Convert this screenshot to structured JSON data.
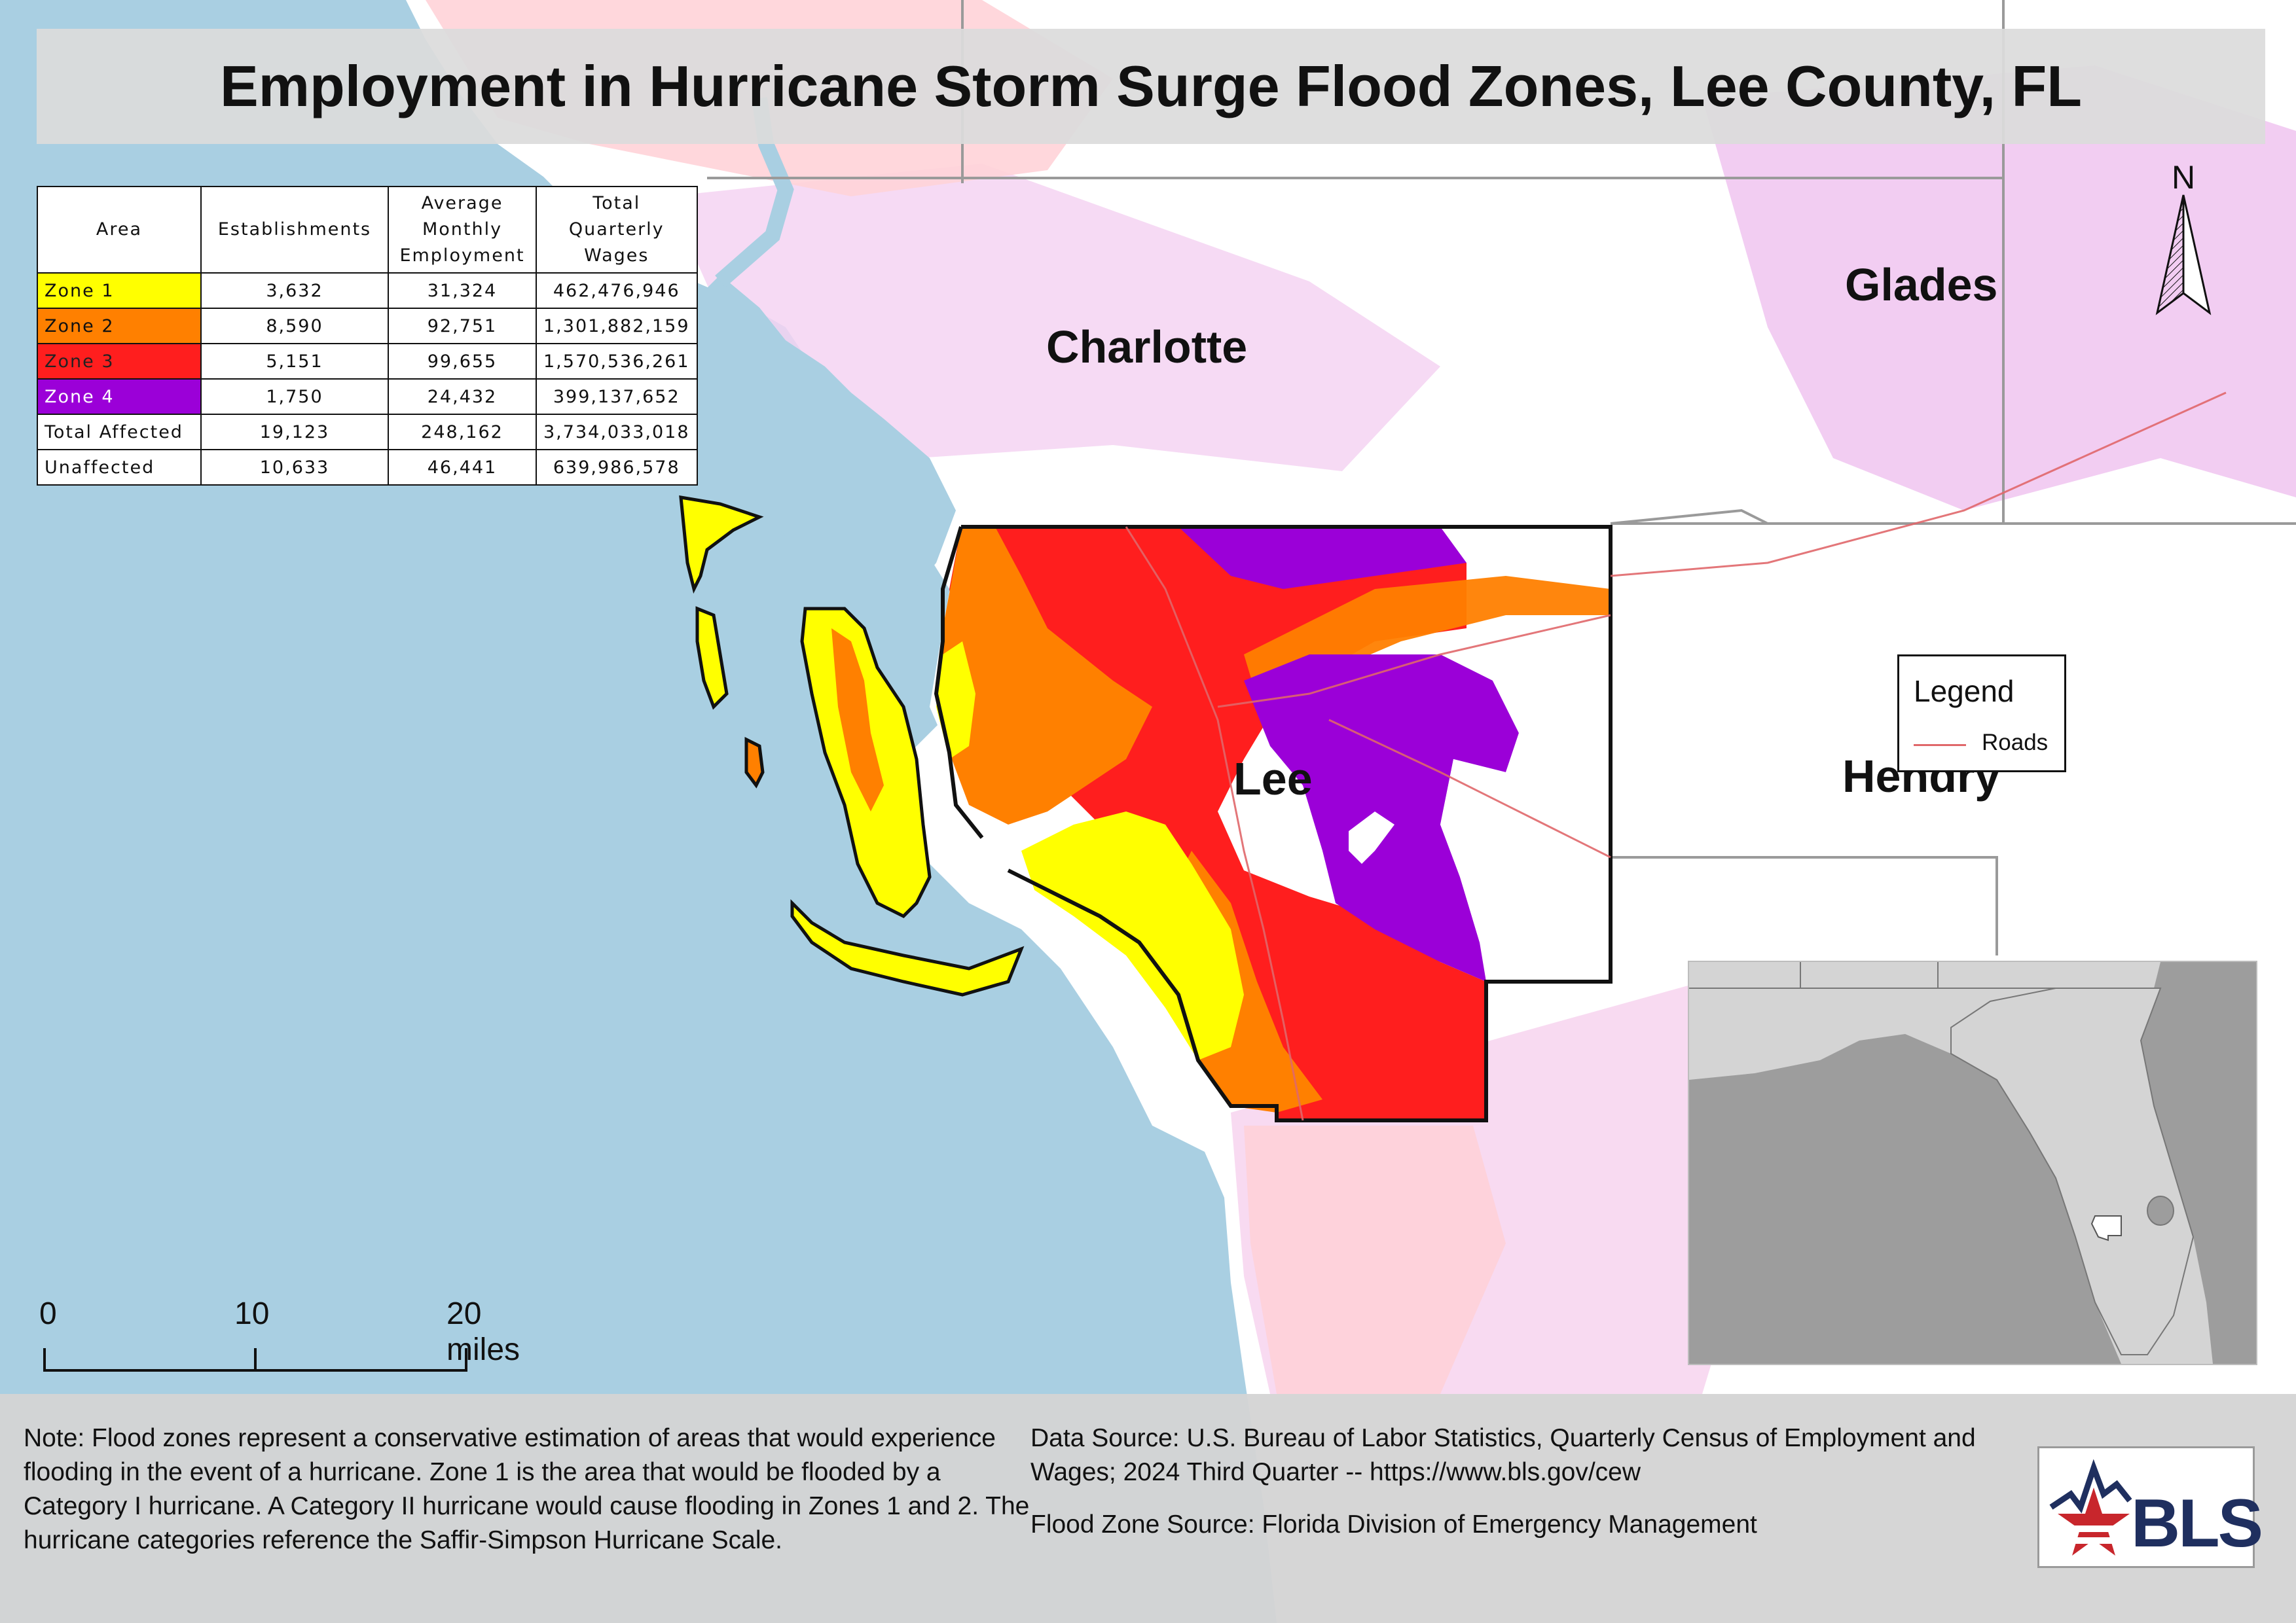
{
  "title": "Employment in Hurricane Storm Surge Flood Zones, Lee County, FL",
  "table": {
    "headers": {
      "area": "Area",
      "establishments": "Establishments",
      "employment": [
        "Average",
        "Monthly",
        "Employment"
      ],
      "wages": [
        "Total",
        "Quarterly",
        "Wages"
      ]
    },
    "rows": [
      {
        "area": "Zone 1",
        "establishments": "3,632",
        "employment": "31,324",
        "wages": "462,476,946",
        "color": "#ffff00",
        "text_color": "#111111"
      },
      {
        "area": "Zone 2",
        "establishments": "8,590",
        "employment": "92,751",
        "wages": "1,301,882,159",
        "color": "#ff8000",
        "text_color": "#111111"
      },
      {
        "area": "Zone 3",
        "establishments": "5,151",
        "employment": "99,655",
        "wages": "1,570,536,261",
        "color": "#ff1e1e",
        "text_color": "#222222"
      },
      {
        "area": "Zone 4",
        "establishments": "1,750",
        "employment": "24,432",
        "wages": "399,137,652",
        "color": "#9b00d8",
        "text_color": "#ffffff"
      },
      {
        "area": "Total Affected",
        "establishments": "19,123",
        "employment": "248,162",
        "wages": "3,734,033,018",
        "color": "#ffffff",
        "text_color": "#111111"
      },
      {
        "area": "Unaffected",
        "establishments": "10,633",
        "employment": "46,441",
        "wages": "639,986,578",
        "color": "#ffffff",
        "text_color": "#111111"
      }
    ]
  },
  "counties": {
    "charlotte": "Charlotte",
    "glades": "Glades",
    "lee": "Lee",
    "hendry": "Hendry"
  },
  "north_label": "N",
  "legend": {
    "title": "Legend",
    "roads_label": "Roads",
    "roads_color": "#e0676a"
  },
  "scale": {
    "labels": [
      "0",
      "10",
      "20 miles"
    ]
  },
  "footer": {
    "note": "Note: Flood zones represent a conservative estimation of areas that would experience flooding in the event of a hurricane. Zone 1 is the area that would be flooded by a Category I hurricane. A Category II hurricane would cause flooding in Zones 1 and 2. The hurricane categories reference the Saffir-Simpson Hurricane Scale.",
    "data_source": "Data Source: U.S. Bureau of Labor Statistics, Quarterly Census of Employment and Wages; 2024 Third Quarter -- https://www.bls.gov/cew",
    "flood_source": "Flood Zone Source: Florida Division of Emergency Management"
  },
  "logo_text": "BLS",
  "colors": {
    "water": "#a9cfe2",
    "land": "#ffffff",
    "zone1": "#ffff00",
    "zone2": "#ff8000",
    "zone3": "#ff1e1e",
    "zone4": "#9b00d8"
  }
}
